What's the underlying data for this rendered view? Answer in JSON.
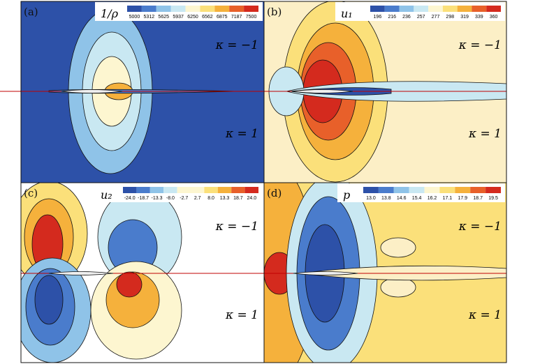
{
  "panels": [
    {
      "label": "(a)",
      "colorbar": {
        "title": "1/ρ",
        "ticks": [
          "5000",
          "5312",
          "5625",
          "5937",
          "6250",
          "6562",
          "6875",
          "7187",
          "7500"
        ]
      },
      "kappa_top": "κ = −1",
      "kappa_bottom": "κ = 1"
    },
    {
      "label": "(b)",
      "colorbar": {
        "title": "u₁",
        "ticks": [
          "196",
          "216",
          "236",
          "257",
          "277",
          "298",
          "319",
          "339",
          "360"
        ]
      },
      "kappa_top": "κ = −1",
      "kappa_bottom": "κ = 1"
    },
    {
      "label": "(c)",
      "colorbar": {
        "title": "u₂",
        "ticks": [
          "-24.0",
          "-18.7",
          "-13.3",
          "-8.0",
          "-2.7",
          "2.7",
          "8.0",
          "13.3",
          "18.7",
          "24.0"
        ]
      },
      "kappa_top": "κ = −1",
      "kappa_bottom": "κ = 1"
    },
    {
      "label": "(d)",
      "colorbar": {
        "title": "p",
        "ticks": [
          "13.0",
          "13.8",
          "14.6",
          "15.4",
          "16.2",
          "17.1",
          "17.9",
          "18.7",
          "19.5"
        ]
      },
      "kappa_top": "κ = −1",
      "kappa_bottom": "κ = 1"
    }
  ]
}
